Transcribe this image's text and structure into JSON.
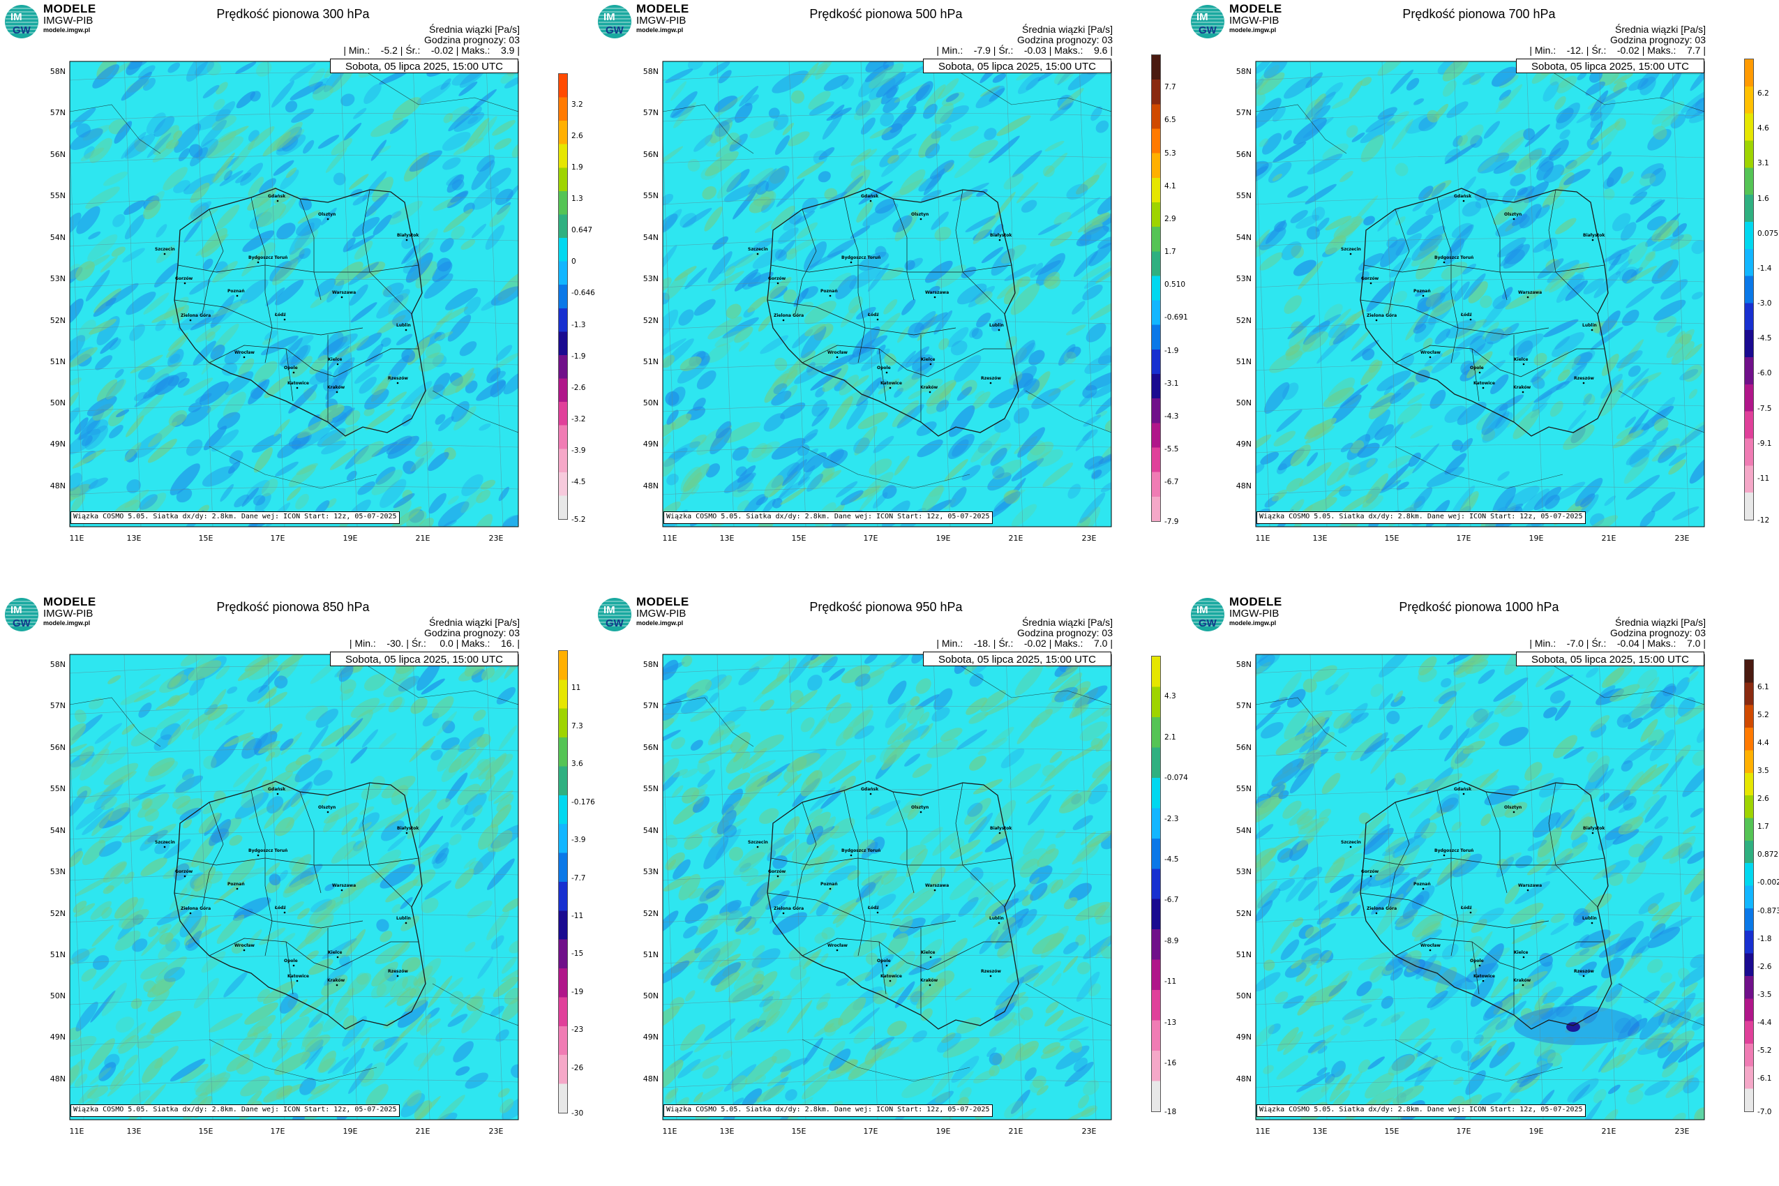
{
  "logo": {
    "main": "MODELE",
    "sub": "IMGW-PIB",
    "url": "modele.imgw.pl",
    "badge_top": "IM",
    "badge_bottom": "GW"
  },
  "common": {
    "stat_title": "Średnia wiązki [Pa/s]",
    "forecast_hour": "Godzina prognozy: 03",
    "datetime": "Sobota, 05 lipca 2025, 15:00 UTC",
    "credit": "Wiązka COSMO 5.05. Siatka dx/dy: 2.8km. Dane wej: ICON Start: 12z, 05-07-2025",
    "lat_labels": [
      "58N",
      "57N",
      "56N",
      "55N",
      "54N",
      "53N",
      "52N",
      "51N",
      "50N",
      "49N",
      "48N"
    ],
    "lon_labels": [
      "11E",
      "13E",
      "15E",
      "17E",
      "19E",
      "21E",
      "23E"
    ],
    "cities": [
      "Gdańsk",
      "Olsztyn",
      "Szczecin",
      "Białystok",
      "Bydgoszcz Toruń",
      "Gorzów",
      "Poznań",
      "Warszawa",
      "Zielona Góra",
      "Łódź",
      "Lublin",
      "Wrocław",
      "Kielce",
      "Opole",
      "Rzeszów",
      "Katowice",
      "Kraków"
    ],
    "colors": {
      "map_base": "#2ee6f0",
      "green": "#6fce8a",
      "blue": "#1e8fe8",
      "border": "#1a1a1a"
    }
  },
  "panels": [
    {
      "title": "Prędkość pionowa 300 hPa",
      "stats": "| Min.:    -5.2 | Śr.:    -0.02 | Maks.:    3.9 |",
      "colorbar": {
        "ticks": [
          "3.2",
          "2.6",
          "1.9",
          "1.3",
          "0.647",
          "0",
          "-0.646",
          "-1.3",
          "-1.9",
          "-2.6",
          "-3.2",
          "-3.9",
          "-4.5",
          "-5.2"
        ],
        "colors": [
          "#ff4a00",
          "#ff7a00",
          "#ffb000",
          "#e6e600",
          "#9fd400",
          "#55c455",
          "#2fb080",
          "#00d8f0",
          "#12b6ff",
          "#0a78e8",
          "#1830d0",
          "#1a0a90",
          "#70108a",
          "#b0168a",
          "#e0409a",
          "#f07cb4",
          "#f5a8c8",
          "#f6cadc",
          "#e8e8e8"
        ]
      }
    },
    {
      "title": "Prędkość pionowa 500 hPa",
      "stats": "| Min.:    -7.9 | Śr.:    -0.03 | Maks.:    9.6 |",
      "colorbar": {
        "ticks": [
          "7.7",
          "6.5",
          "5.3",
          "4.1",
          "2.9",
          "1.7",
          "0.510",
          "-0.691",
          "-1.9",
          "-3.1",
          "-4.3",
          "-5.5",
          "-6.7",
          "-7.9"
        ],
        "colors": [
          "#4a1a10",
          "#8a2a10",
          "#d04a00",
          "#ff7a00",
          "#ffb000",
          "#e6e600",
          "#9fd400",
          "#55c455",
          "#2fb080",
          "#00d8f0",
          "#12b6ff",
          "#0a78e8",
          "#1830d0",
          "#1a0a90",
          "#70108a",
          "#b0168a",
          "#e0409a",
          "#f07cb4",
          "#f5a8c8"
        ]
      }
    },
    {
      "title": "Prędkość pionowa 700 hPa",
      "stats": "| Min.:    -12. | Śr.:    -0.02 | Maks.:    7.7 |",
      "colorbar": {
        "ticks": [
          "6.2",
          "4.6",
          "3.1",
          "1.6",
          "0.075",
          "-1.4",
          "-3.0",
          "-4.5",
          "-6.0",
          "-7.5",
          "-9.1",
          "-11",
          "-12"
        ],
        "colors": [
          "#ff9a00",
          "#ffc000",
          "#e6e600",
          "#9fd400",
          "#55c455",
          "#2fb080",
          "#00d8f0",
          "#12b6ff",
          "#0a78e8",
          "#1830d0",
          "#1a0a90",
          "#70108a",
          "#b0168a",
          "#e0409a",
          "#f07cb4",
          "#f5a8c8",
          "#e8e8e8"
        ]
      }
    },
    {
      "title": "Prędkość pionowa 850 hPa",
      "stats": "| Min.:    -30. | Śr.:     0.0 | Maks.:    16. |",
      "colorbar": {
        "ticks": [
          "11",
          "7.3",
          "3.6",
          "-0.176",
          "-3.9",
          "-7.7",
          "-11",
          "-15",
          "-19",
          "-23",
          "-26",
          "-30"
        ],
        "colors": [
          "#ffb000",
          "#e6e600",
          "#9fd400",
          "#55c455",
          "#2fb080",
          "#00d8f0",
          "#12b6ff",
          "#0a78e8",
          "#1830d0",
          "#1a0a90",
          "#70108a",
          "#b0168a",
          "#e0409a",
          "#f07cb4",
          "#f5a8c8",
          "#e8e8e8"
        ]
      }
    },
    {
      "title": "Prędkość pionowa 950 hPa",
      "stats": "| Min.:    -18. | Śr.:    -0.02 | Maks.:    7.0 |",
      "colorbar": {
        "ticks": [
          "4.3",
          "2.1",
          "-0.074",
          "-2.3",
          "-4.5",
          "-6.7",
          "-8.9",
          "-11",
          "-13",
          "-16",
          "-18"
        ],
        "colors": [
          "#e6e600",
          "#9fd400",
          "#55c455",
          "#2fb080",
          "#00d8f0",
          "#12b6ff",
          "#0a78e8",
          "#1830d0",
          "#1a0a90",
          "#70108a",
          "#b0168a",
          "#e0409a",
          "#f07cb4",
          "#f5a8c8",
          "#e8e8e8"
        ]
      }
    },
    {
      "title": "Prędkość pionowa 1000 hPa",
      "stats": "| Min.:    -7.0 | Śr.:    -0.04 | Maks.:    7.0 |",
      "colorbar": {
        "ticks": [
          "6.1",
          "5.2",
          "4.4",
          "3.5",
          "2.6",
          "1.7",
          "0.872",
          "-0.002",
          "-0.873",
          "-1.8",
          "-2.6",
          "-3.5",
          "-4.4",
          "-5.2",
          "-6.1",
          "-7.0"
        ],
        "colors": [
          "#4a1a10",
          "#8a2a10",
          "#d04a00",
          "#ff7a00",
          "#ffb000",
          "#e6e600",
          "#9fd400",
          "#55c455",
          "#2fb080",
          "#00d8f0",
          "#12b6ff",
          "#0a78e8",
          "#1830d0",
          "#1a0a90",
          "#70108a",
          "#b0168a",
          "#e0409a",
          "#f07cb4",
          "#f5a8c8",
          "#e8e8e8"
        ]
      }
    }
  ]
}
